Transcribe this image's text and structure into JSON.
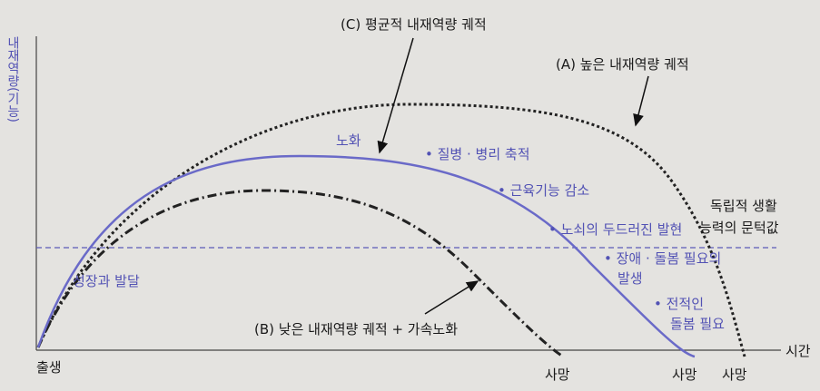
{
  "axes": {
    "y_label": "내재역량(기능)",
    "x_label": "시간",
    "origin_label": "출생"
  },
  "endpoints": [
    "사망",
    "사망",
    "사망"
  ],
  "trajectories": {
    "c": "(C) 평균적 내재역량 궤적",
    "a": "(A) 높은 내재역량 궤적",
    "b": "(B) 낮은 내재역량 궤적 + 가속노화"
  },
  "annotations": {
    "aging": "노화",
    "growth": "성장과 발달",
    "stages": [
      [
        "• 질병 · 병리 축적"
      ],
      [
        "• 근육기능 감소"
      ],
      [
        "• 노쇠의 두드러진 발현"
      ],
      [
        "• 장애 · 돌봄 필요의",
        "발생"
      ],
      [
        "• 전적인",
        "돌봄 필요"
      ]
    ],
    "threshold": [
      "독립적 생활",
      "능력의 문턱값"
    ]
  }
}
